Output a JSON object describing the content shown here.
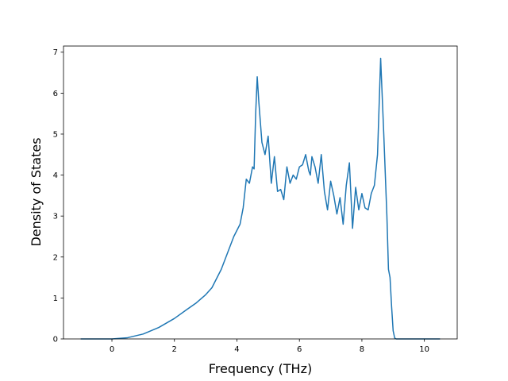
{
  "chart_data": {
    "type": "line",
    "title": "",
    "xlabel": "Frequency (THz)",
    "ylabel": "Density of States",
    "xlim": [
      -1.55,
      11.05
    ],
    "ylim": [
      0,
      7.15
    ],
    "grid": false,
    "legend": "none",
    "x_ticks": [
      0,
      2,
      4,
      6,
      8,
      10
    ],
    "x_tick_labels": [
      "0",
      "2",
      "4",
      "6",
      "8",
      "10"
    ],
    "y_ticks": [
      0,
      1,
      2,
      3,
      4,
      5,
      6,
      7
    ],
    "y_tick_labels": [
      "0",
      "1",
      "2",
      "3",
      "4",
      "5",
      "6",
      "7"
    ],
    "series": [
      {
        "color": "#1f77b4",
        "x": [
          -1.0,
          -0.5,
          0.0,
          0.5,
          1.0,
          1.5,
          2.0,
          2.4,
          2.7,
          3.0,
          3.2,
          3.5,
          3.7,
          3.9,
          4.1,
          4.2,
          4.3,
          4.4,
          4.5,
          4.55,
          4.6,
          4.65,
          4.7,
          4.8,
          4.9,
          5.0,
          5.1,
          5.2,
          5.3,
          5.4,
          5.5,
          5.6,
          5.7,
          5.8,
          5.9,
          6.0,
          6.1,
          6.2,
          6.3,
          6.35,
          6.4,
          6.5,
          6.6,
          6.7,
          6.8,
          6.9,
          7.0,
          7.1,
          7.2,
          7.3,
          7.4,
          7.5,
          7.6,
          7.7,
          7.8,
          7.9,
          8.0,
          8.1,
          8.2,
          8.3,
          8.4,
          8.5,
          8.6,
          8.7,
          8.8,
          8.85,
          8.9,
          8.95,
          9.0,
          9.05,
          9.1,
          9.2,
          9.3,
          9.4,
          9.5,
          9.6,
          10.0,
          10.5
        ],
        "y": [
          0.0,
          0.0,
          0.0,
          0.03,
          0.12,
          0.28,
          0.5,
          0.72,
          0.88,
          1.08,
          1.25,
          1.7,
          2.1,
          2.5,
          2.8,
          3.2,
          3.9,
          3.8,
          4.2,
          4.15,
          5.5,
          6.4,
          5.8,
          4.8,
          4.5,
          4.95,
          3.8,
          4.45,
          3.6,
          3.65,
          3.4,
          4.2,
          3.8,
          4.0,
          3.9,
          4.2,
          4.25,
          4.5,
          4.1,
          4.0,
          4.45,
          4.2,
          3.8,
          4.5,
          3.6,
          3.15,
          3.85,
          3.5,
          3.05,
          3.45,
          2.8,
          3.75,
          4.3,
          2.7,
          3.7,
          3.15,
          3.55,
          3.2,
          3.15,
          3.55,
          3.75,
          4.5,
          6.85,
          5.0,
          3.0,
          1.7,
          1.5,
          0.8,
          0.2,
          0.02,
          0.0,
          0.0,
          0.0,
          0.0,
          0.0,
          0.0,
          0.0,
          0.0
        ]
      }
    ]
  }
}
